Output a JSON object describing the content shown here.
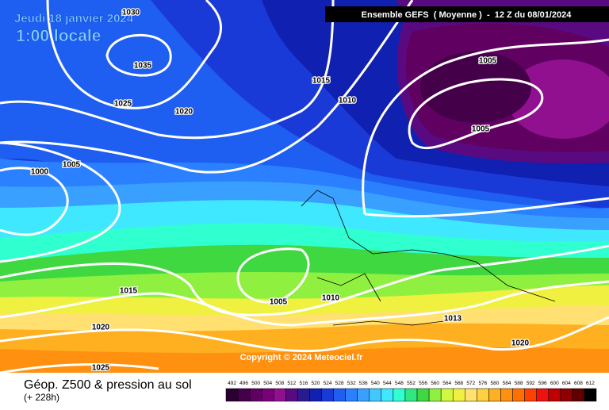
{
  "header": {
    "date": "Jeudi 18 janvier 2024",
    "time": "1:00 locale",
    "model": "Ensemble GEFS  ( Moyenne )  -  12 Z du 08/01/2024"
  },
  "isobars": [
    "1030",
    "1035",
    "1025",
    "1020",
    "1015",
    "1010",
    "1005",
    "1005",
    "1005",
    "1000",
    "1015",
    "1005",
    "1010",
    "1013",
    "1020",
    "1020",
    "1025"
  ],
  "copyright": "Copyright © 2024 Meteociel.fr",
  "footer": {
    "title": "Géop. Z500 & pression au sol",
    "lead": "(+ 228h)"
  },
  "legend": {
    "ticks": [
      492,
      496,
      500,
      504,
      508,
      512,
      516,
      520,
      524,
      528,
      532,
      536,
      540,
      544,
      548,
      552,
      556,
      560,
      564,
      568,
      572,
      576,
      580,
      584,
      588,
      592,
      596,
      600,
      604,
      608,
      612
    ],
    "colors": [
      "#2a0030",
      "#45004a",
      "#600060",
      "#7a007a",
      "#901090",
      "#5a0a80",
      "#2a1a90",
      "#1020b0",
      "#1a3ad8",
      "#1e5ef0",
      "#2a80ff",
      "#3aa0ff",
      "#40c8ff",
      "#40e8ff",
      "#30ffd0",
      "#30e880",
      "#40d840",
      "#90f040",
      "#d0f840",
      "#f0f040",
      "#ffe070",
      "#ffd040",
      "#ffb020",
      "#ff9010",
      "#ff7000",
      "#ff4000",
      "#f01010",
      "#c00000",
      "#900000",
      "#600000",
      "#000000"
    ]
  }
}
